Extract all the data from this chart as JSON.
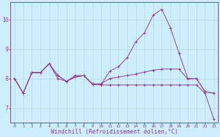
{
  "background_color": "#cceeff",
  "grid_color": "#b8ddd8",
  "line_color": "#993399",
  "marker": "+",
  "xlabel": "Windchill (Refroidissement éolien,°C)",
  "xlabel_fontsize": 6,
  "xtick_fontsize": 4.5,
  "ytick_fontsize": 5.5,
  "xlim": [
    -0.5,
    23.5
  ],
  "ylim": [
    6.5,
    10.6
  ],
  "yticks": [
    7,
    8,
    9,
    10
  ],
  "series": [
    [
      8.0,
      7.5,
      8.2,
      8.2,
      8.5,
      8.0,
      7.9,
      8.05,
      8.1,
      7.8,
      7.8,
      8.25,
      8.4,
      8.7,
      9.25,
      9.55,
      10.15,
      10.35,
      9.72,
      8.85,
      8.0,
      8.0,
      7.55,
      7.5
    ],
    [
      8.0,
      7.5,
      8.2,
      8.2,
      8.5,
      8.1,
      7.9,
      8.05,
      8.1,
      7.82,
      7.82,
      8.0,
      8.05,
      8.1,
      8.15,
      8.22,
      8.28,
      8.32,
      8.32,
      8.32,
      7.98,
      8.0,
      7.55,
      7.5
    ],
    [
      8.0,
      7.5,
      8.2,
      8.2,
      8.5,
      8.1,
      7.9,
      8.1,
      8.1,
      7.8,
      7.78,
      7.78,
      7.78,
      7.78,
      7.78,
      7.78,
      7.78,
      7.78,
      7.78,
      7.78,
      7.78,
      7.78,
      7.5,
      6.62
    ]
  ]
}
